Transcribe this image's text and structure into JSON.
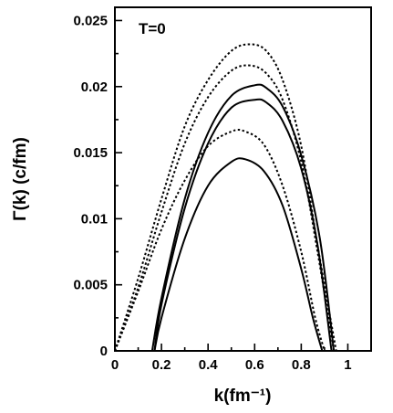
{
  "chart_data": {
    "type": "line",
    "title": "",
    "annotation": "T=0",
    "xlabel": "k(fm⁻¹)",
    "ylabel": "Γ(k) (c/fm)",
    "xlim": [
      0,
      1.1
    ],
    "ylim": [
      0,
      0.026
    ],
    "x_ticks": [
      0,
      0.2,
      0.4,
      0.6,
      0.8,
      1
    ],
    "x_tick_labels": [
      "0",
      "0.2",
      "0.4",
      "0.6",
      "0.8",
      "1"
    ],
    "y_ticks": [
      0,
      0.005,
      0.01,
      0.015,
      0.02,
      0.025
    ],
    "y_tick_labels": [
      "0",
      "0.005",
      "0.01",
      "0.015",
      "0.02",
      "0.025"
    ],
    "grid": false,
    "legend": "none",
    "series": [
      {
        "style": "dotted",
        "x": [
          0,
          0.1,
          0.2,
          0.3,
          0.4,
          0.5,
          0.58,
          0.65,
          0.72,
          0.8,
          0.87,
          0.95
        ],
        "y": [
          0,
          0.0055,
          0.0115,
          0.017,
          0.0205,
          0.0227,
          0.0232,
          0.0227,
          0.0205,
          0.0155,
          0.008,
          0
        ]
      },
      {
        "style": "dotted",
        "x": [
          0,
          0.1,
          0.2,
          0.3,
          0.4,
          0.5,
          0.58,
          0.65,
          0.72,
          0.8,
          0.87,
          0.94
        ],
        "y": [
          0,
          0.0048,
          0.0105,
          0.0157,
          0.0192,
          0.0212,
          0.0216,
          0.021,
          0.019,
          0.0143,
          0.0075,
          0
        ]
      },
      {
        "style": "solid",
        "x": [
          0.16,
          0.2,
          0.3,
          0.4,
          0.5,
          0.6,
          0.65,
          0.72,
          0.8,
          0.88,
          0.94
        ],
        "y": [
          0,
          0.004,
          0.0115,
          0.0165,
          0.0193,
          0.0201,
          0.0199,
          0.0185,
          0.0148,
          0.0085,
          0
        ]
      },
      {
        "style": "solid",
        "x": [
          0.17,
          0.2,
          0.3,
          0.4,
          0.5,
          0.6,
          0.65,
          0.72,
          0.8,
          0.87,
          0.93
        ],
        "y": [
          0,
          0.0035,
          0.0108,
          0.0157,
          0.0184,
          0.019,
          0.0188,
          0.0174,
          0.0138,
          0.008,
          0
        ]
      },
      {
        "style": "dotted",
        "x": [
          0,
          0.1,
          0.2,
          0.3,
          0.4,
          0.5,
          0.56,
          0.64,
          0.72,
          0.8,
          0.86,
          0.9
        ],
        "y": [
          0,
          0.0045,
          0.0092,
          0.0129,
          0.0155,
          0.0166,
          0.0166,
          0.0156,
          0.0125,
          0.0075,
          0.0025,
          0
        ]
      },
      {
        "style": "solid",
        "x": [
          0.17,
          0.2,
          0.3,
          0.4,
          0.5,
          0.56,
          0.64,
          0.72,
          0.8,
          0.85,
          0.89
        ],
        "y": [
          0,
          0.0025,
          0.0085,
          0.0125,
          0.0143,
          0.0145,
          0.0136,
          0.011,
          0.0062,
          0.0025,
          0
        ]
      }
    ]
  }
}
